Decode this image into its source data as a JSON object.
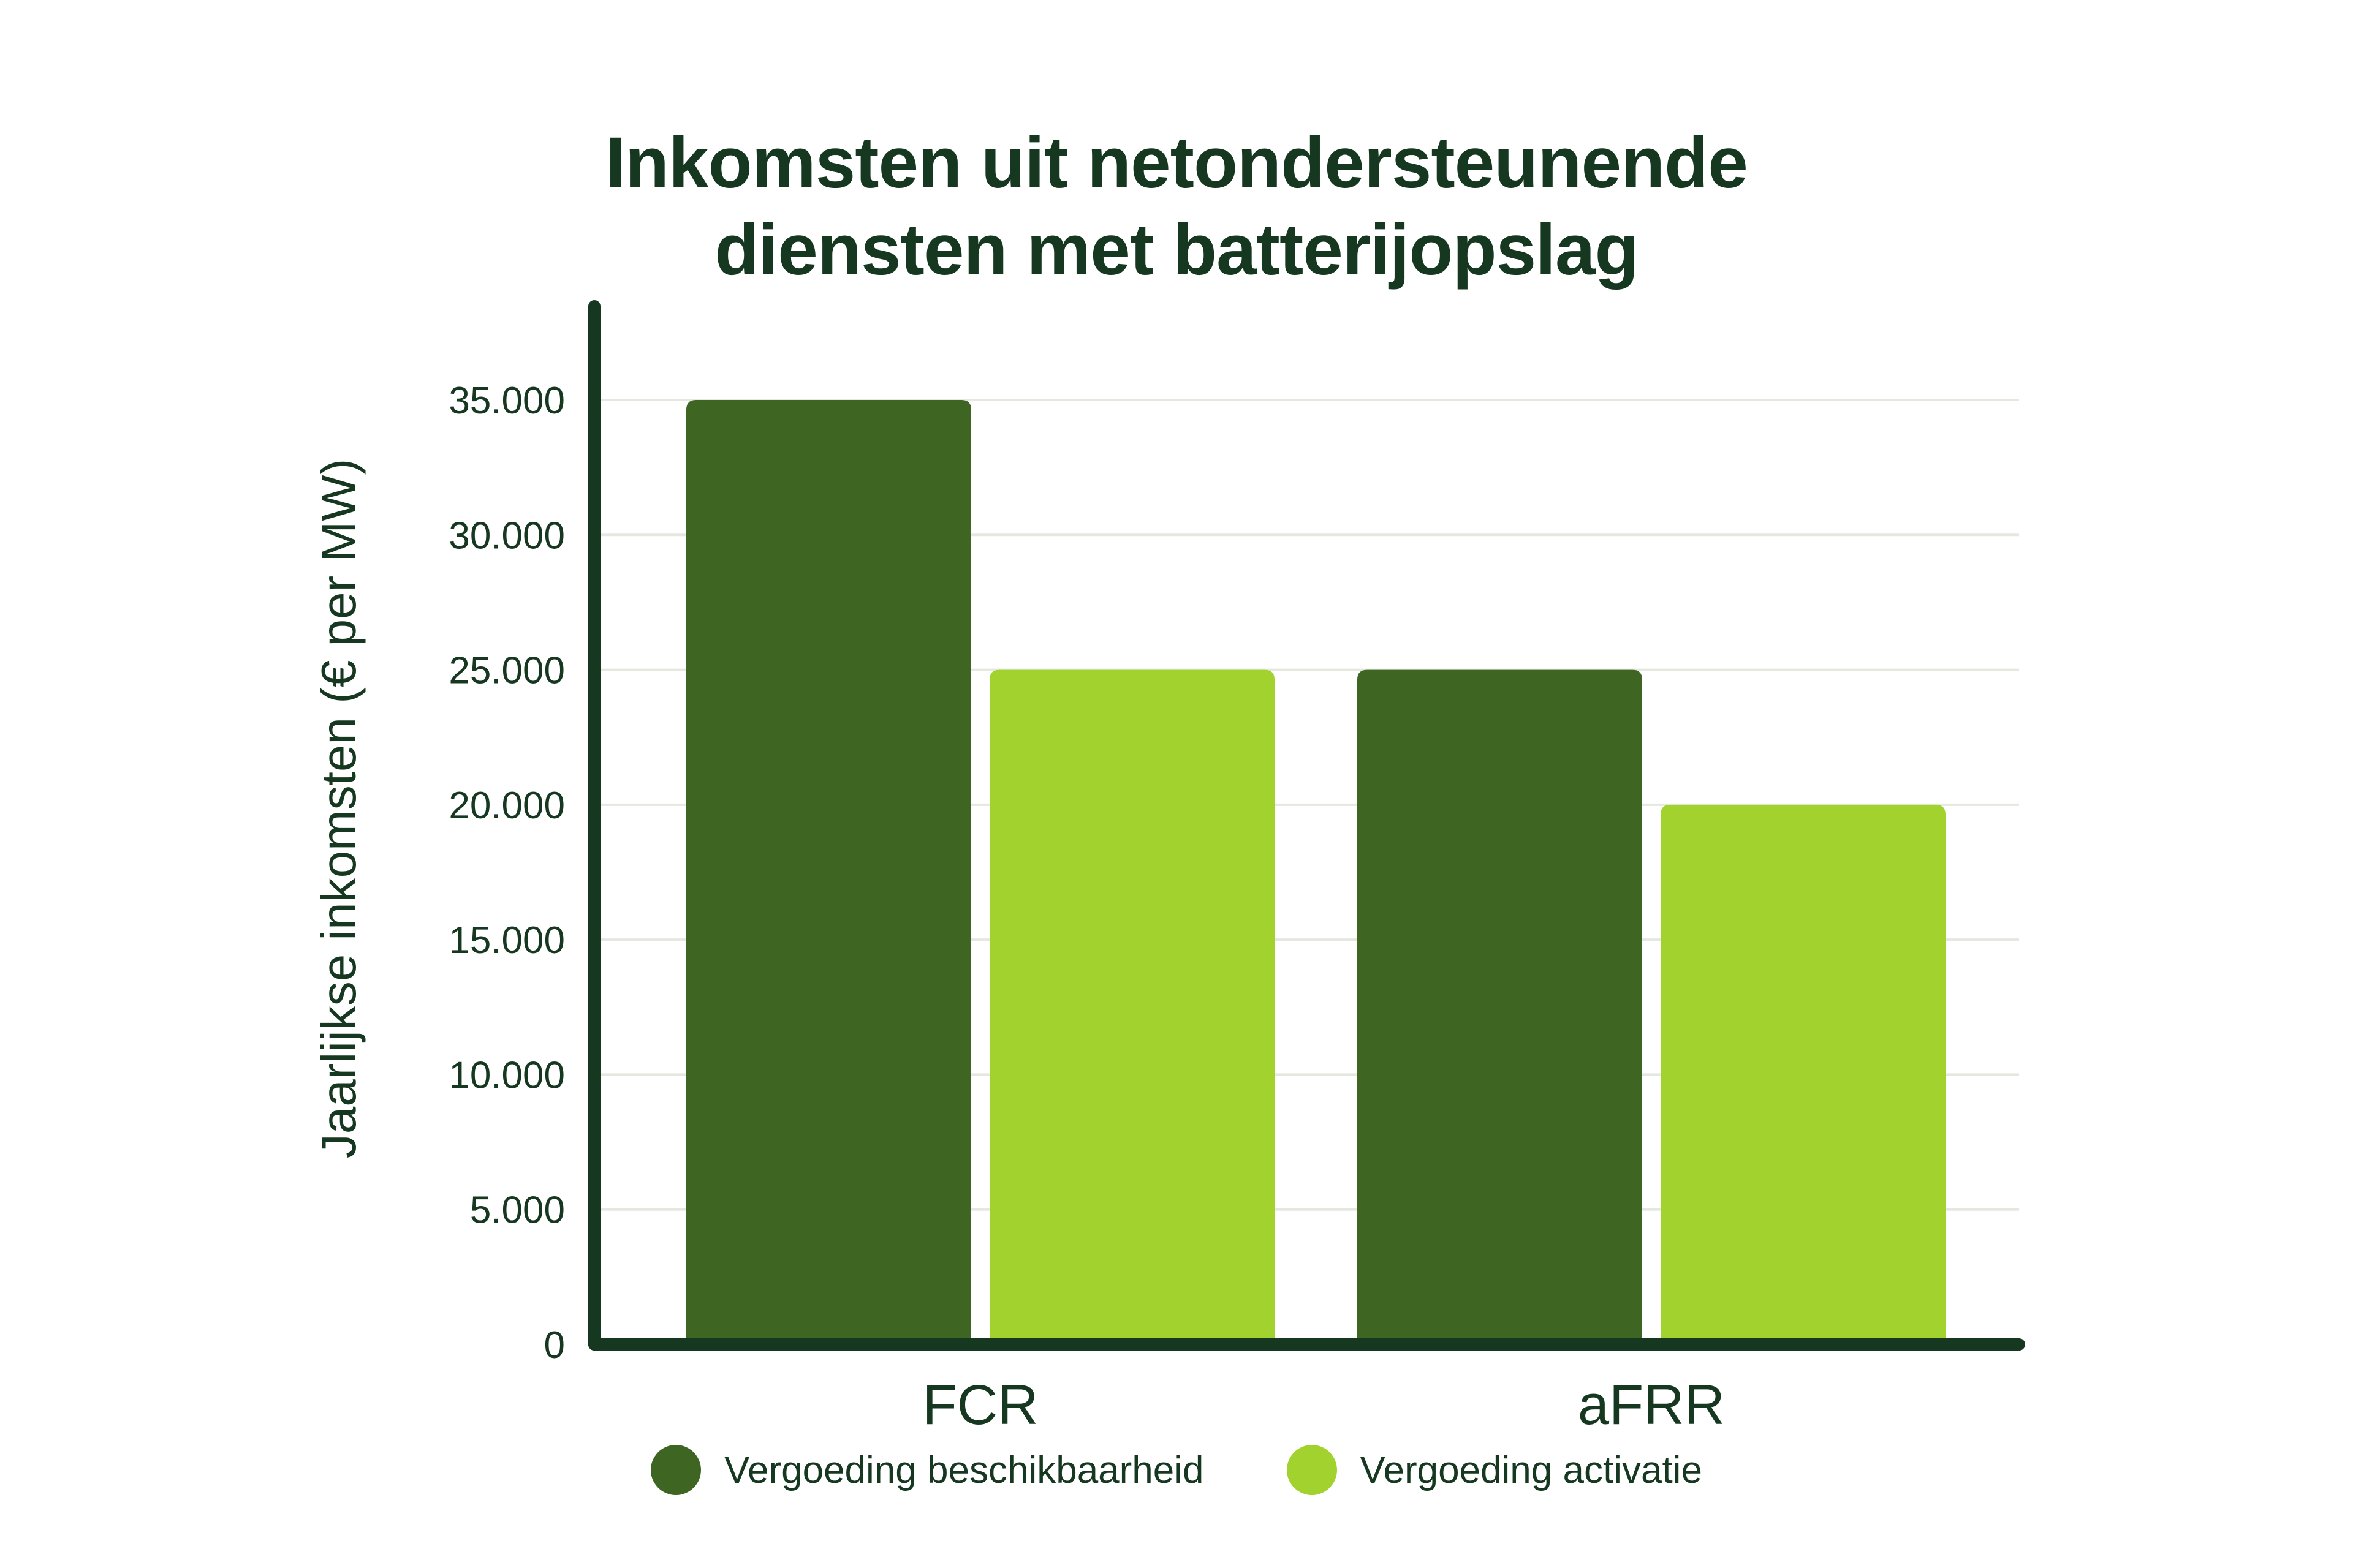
{
  "chart_data": {
    "type": "bar",
    "title": [
      "Inkomsten uit netondersteunende",
      "diensten met batterijopslag"
    ],
    "xlabel": "",
    "ylabel": "Jaarlijkse inkomsten (€ per MW)",
    "categories": [
      "FCR",
      "aFRR"
    ],
    "series": [
      {
        "name": "Vergoeding beschikbaarheid",
        "color": "#3e6522",
        "values": [
          35000,
          25000
        ]
      },
      {
        "name": "Vergoeding activatie",
        "color": "#a1d22e",
        "values": [
          25000,
          20000
        ]
      }
    ],
    "ylim": [
      0,
      35000
    ],
    "yticks": [
      0,
      5000,
      10000,
      15000,
      20000,
      25000,
      30000,
      35000
    ],
    "ytick_labels": [
      "0",
      "5.000",
      "10.000",
      "15.000",
      "20.000",
      "25.000",
      "30.000",
      "35.000"
    ],
    "grid": true,
    "legend_position": "bottom"
  },
  "colors": {
    "axis": "#163720",
    "text": "#163720",
    "grid": "#e4e8de"
  }
}
